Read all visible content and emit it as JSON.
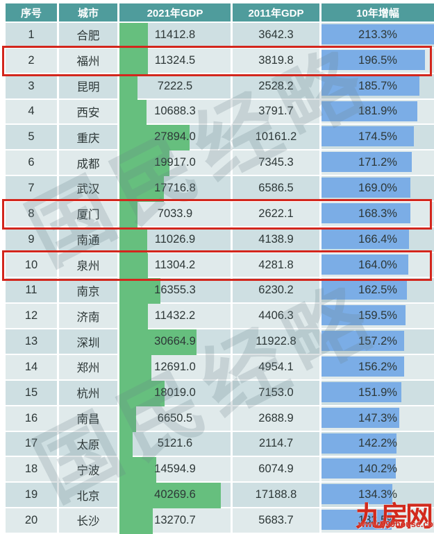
{
  "chart_data": {
    "type": "table",
    "columns": [
      "序号",
      "城市",
      "2021年GDP",
      "2011年GDP",
      "10年增幅"
    ],
    "rows": [
      {
        "rank": "1",
        "city": "合肥",
        "gdp2021": "11412.8",
        "gdp2011": "3642.3",
        "growth": "213.3%"
      },
      {
        "rank": "2",
        "city": "福州",
        "gdp2021": "11324.5",
        "gdp2011": "3819.8",
        "growth": "196.5%"
      },
      {
        "rank": "3",
        "city": "昆明",
        "gdp2021": "7222.5",
        "gdp2011": "2528.2",
        "growth": "185.7%"
      },
      {
        "rank": "4",
        "city": "西安",
        "gdp2021": "10688.3",
        "gdp2011": "3791.7",
        "growth": "181.9%"
      },
      {
        "rank": "5",
        "city": "重庆",
        "gdp2021": "27894.0",
        "gdp2011": "10161.2",
        "growth": "174.5%"
      },
      {
        "rank": "6",
        "city": "成都",
        "gdp2021": "19917.0",
        "gdp2011": "7345.3",
        "growth": "171.2%"
      },
      {
        "rank": "7",
        "city": "武汉",
        "gdp2021": "17716.8",
        "gdp2011": "6586.5",
        "growth": "169.0%"
      },
      {
        "rank": "8",
        "city": "厦门",
        "gdp2021": "7033.9",
        "gdp2011": "2622.1",
        "growth": "168.3%"
      },
      {
        "rank": "9",
        "city": "南通",
        "gdp2021": "11026.9",
        "gdp2011": "4138.9",
        "growth": "166.4%"
      },
      {
        "rank": "10",
        "city": "泉州",
        "gdp2021": "11304.2",
        "gdp2011": "4281.8",
        "growth": "164.0%"
      },
      {
        "rank": "11",
        "city": "南京",
        "gdp2021": "16355.3",
        "gdp2011": "6230.2",
        "growth": "162.5%"
      },
      {
        "rank": "12",
        "city": "济南",
        "gdp2021": "11432.2",
        "gdp2011": "4406.3",
        "growth": "159.5%"
      },
      {
        "rank": "13",
        "city": "深圳",
        "gdp2021": "30664.9",
        "gdp2011": "11922.8",
        "growth": "157.2%"
      },
      {
        "rank": "14",
        "city": "郑州",
        "gdp2021": "12691.0",
        "gdp2011": "4954.1",
        "growth": "156.2%"
      },
      {
        "rank": "15",
        "city": "杭州",
        "gdp2021": "18019.0",
        "gdp2011": "7153.0",
        "growth": "151.9%"
      },
      {
        "rank": "16",
        "city": "南昌",
        "gdp2021": "6650.5",
        "gdp2011": "2688.9",
        "growth": "147.3%"
      },
      {
        "rank": "17",
        "city": "太原",
        "gdp2021": "5121.6",
        "gdp2011": "2114.7",
        "growth": "142.2%"
      },
      {
        "rank": "18",
        "city": "宁波",
        "gdp2021": "14594.9",
        "gdp2011": "6074.9",
        "growth": "140.2%"
      },
      {
        "rank": "19",
        "city": "北京",
        "gdp2021": "40269.6",
        "gdp2011": "17188.8",
        "growth": "134.3%"
      },
      {
        "rank": "20",
        "city": "长沙",
        "gdp2021": "13270.7",
        "gdp2011": "5683.7",
        "growth": "133.5%"
      }
    ],
    "bar_axes": {
      "gdp2021_bar_max_value": 40269.6,
      "growth_bar_max_pct": 213.3
    },
    "highlighted_ranks": [
      2,
      8,
      10
    ]
  },
  "watermark": {
    "text": "国民经略"
  },
  "logo": {
    "brand": "九房网",
    "url": "www.999house.com"
  },
  "colors": {
    "header_bg": "#4f9c9c",
    "row_odd": "#cedfe2",
    "row_even": "#e0eaeb",
    "bar_2021": "#66bf7e",
    "bar_growth": "#7bade6",
    "highlight_border": "#d3261c",
    "logo_red": "#d2291c"
  }
}
